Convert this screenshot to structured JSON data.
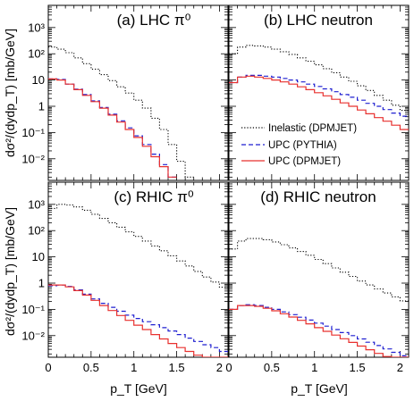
{
  "chart_data": {
    "type": "line",
    "ylabel": "dσ²/(dydp_T) [mb/GeV]",
    "xlabel": "p_T [GeV]",
    "y_scale": "log",
    "grid": false,
    "legend_placement": "right-middle of panel (b)",
    "legend": [
      {
        "series": "inelastic",
        "label": "Inelastic (DPMJET)",
        "color": "#000000",
        "style": "dotted"
      },
      {
        "series": "upc_pythia",
        "label": "UPC (PYTHIA)",
        "color": "#1f1fd0",
        "style": "dashed"
      },
      {
        "series": "upc_dpmjet",
        "label": "UPC (DPMJET)",
        "color": "#e8312f",
        "style": "solid"
      }
    ],
    "panels": [
      {
        "id": "a",
        "title": "(a) LHC π⁰",
        "xlim": [
          0,
          2.1
        ],
        "ylim": [
          0.0015,
          7000
        ],
        "x_ticks": [
          0,
          0.5,
          1,
          1.5,
          2
        ],
        "x_tick_labels": [
          "0",
          "0.5",
          "1",
          "1.5",
          "2"
        ],
        "y_ticks": [
          0.01,
          0.1,
          1,
          10,
          100,
          1000
        ],
        "y_tick_labels": [
          "10⁻²",
          "10⁻¹",
          "1",
          "10",
          "10²",
          "10³"
        ],
        "series": {
          "inelastic": {
            "x": [
              0.05,
              0.15,
              0.25,
              0.35,
              0.45,
              0.55,
              0.65,
              0.75,
              0.85,
              0.95,
              1.05,
              1.15,
              1.25,
              1.35,
              1.45,
              1.55,
              1.65
            ],
            "y": [
              180,
              150,
              110,
              70,
              42,
              26,
              16,
              9.5,
              5.5,
              3.2,
              1.7,
              0.85,
              0.35,
              0.13,
              0.035,
              0.008,
              0.002
            ]
          },
          "upc_pythia": {
            "x": [
              0.05,
              0.15,
              0.25,
              0.35,
              0.45,
              0.55,
              0.65,
              0.75,
              0.85,
              0.95,
              1.05,
              1.15,
              1.25,
              1.35,
              1.45
            ],
            "y": [
              11,
              10.5,
              7,
              4.5,
              2.8,
              1.6,
              0.9,
              0.5,
              0.28,
              0.15,
              0.075,
              0.035,
              0.015,
              0.006,
              0.002
            ]
          },
          "upc_dpmjet": {
            "x": [
              0.05,
              0.15,
              0.25,
              0.35,
              0.45,
              0.55,
              0.65,
              0.75,
              0.85,
              0.95,
              1.05,
              1.15,
              1.25,
              1.35,
              1.45
            ],
            "y": [
              11,
              10,
              7,
              4.3,
              2.6,
              1.5,
              0.85,
              0.46,
              0.25,
              0.13,
              0.065,
              0.03,
              0.012,
              0.005,
              0.002
            ]
          }
        }
      },
      {
        "id": "b",
        "title": "(b) LHC neutron",
        "xlim": [
          0,
          2.1
        ],
        "ylim": [
          0.0015,
          7000
        ],
        "x_ticks": [
          0,
          0.5,
          1,
          1.5,
          2
        ],
        "x_tick_labels": [
          "0",
          "0.5",
          "1",
          "1.5",
          "2"
        ],
        "y_ticks": [],
        "y_tick_labels": [],
        "series": {
          "inelastic": {
            "x": [
              0.05,
              0.15,
              0.25,
              0.35,
              0.45,
              0.55,
              0.65,
              0.75,
              0.85,
              0.95,
              1.05,
              1.15,
              1.25,
              1.35,
              1.45,
              1.55,
              1.65,
              1.75,
              1.85,
              1.95,
              2.05
            ],
            "y": [
              100,
              180,
              210,
              200,
              180,
              150,
              120,
              95,
              70,
              52,
              38,
              27,
              19,
              13,
              9,
              6,
              4,
              2.6,
              1.7,
              1.1,
              0.7
            ]
          },
          "upc_pythia": {
            "x": [
              0.05,
              0.15,
              0.25,
              0.35,
              0.45,
              0.55,
              0.65,
              0.75,
              0.85,
              0.95,
              1.05,
              1.15,
              1.25,
              1.35,
              1.45,
              1.55,
              1.65,
              1.75,
              1.85,
              1.95,
              2.05
            ],
            "y": [
              8,
              13,
              15,
              15,
              14,
              13,
              11.5,
              10,
              8.5,
              7,
              5.7,
              4.6,
              3.6,
              2.8,
              2.2,
              1.7,
              1.3,
              1.0,
              0.75,
              0.55,
              0.42
            ]
          },
          "upc_dpmjet": {
            "x": [
              0.05,
              0.15,
              0.25,
              0.35,
              0.45,
              0.55,
              0.65,
              0.75,
              0.85,
              0.95,
              1.05,
              1.15,
              1.25,
              1.35,
              1.45,
              1.55,
              1.65,
              1.75,
              1.85,
              1.95,
              2.05
            ],
            "y": [
              8,
              13,
              14,
              13,
              11.5,
              10,
              8.5,
              7,
              5.5,
              4.3,
              3.3,
              2.5,
              1.85,
              1.35,
              1.0,
              0.72,
              0.52,
              0.37,
              0.27,
              0.19,
              0.13
            ]
          }
        }
      },
      {
        "id": "c",
        "title": "(c) RHIC π⁰",
        "xlim": [
          0,
          2.1
        ],
        "ylim": [
          0.0015,
          7000
        ],
        "x_ticks": [
          0,
          0.5,
          1,
          1.5,
          2
        ],
        "x_tick_labels": [
          "0",
          "0.5",
          "1",
          "1.5",
          "2"
        ],
        "y_ticks": [
          0.01,
          0.1,
          1,
          10,
          100,
          1000
        ],
        "y_tick_labels": [
          "10⁻²",
          "10⁻¹",
          "1",
          "10",
          "10²",
          "10³"
        ],
        "series": {
          "inelastic": {
            "x": [
              0.05,
              0.15,
              0.25,
              0.35,
              0.45,
              0.55,
              0.65,
              0.75,
              0.85,
              0.95,
              1.05,
              1.15,
              1.25,
              1.35,
              1.45,
              1.55,
              1.65,
              1.75,
              1.85,
              1.95,
              2.05
            ],
            "y": [
              700,
              1000,
              950,
              800,
              600,
              420,
              290,
              200,
              135,
              90,
              60,
              40,
              26,
              17,
              11,
              7,
              4.5,
              2.8,
              1.7,
              1.1,
              0.7
            ]
          },
          "upc_pythia": {
            "x": [
              0.05,
              0.15,
              0.25,
              0.35,
              0.45,
              0.55,
              0.65,
              0.75,
              0.85,
              0.95,
              1.05,
              1.15,
              1.25,
              1.35,
              1.45,
              1.55,
              1.65,
              1.75,
              1.85,
              1.95,
              2.05
            ],
            "y": [
              0.8,
              0.85,
              0.75,
              0.55,
              0.38,
              0.25,
              0.17,
              0.12,
              0.085,
              0.06,
              0.045,
              0.034,
              0.026,
              0.02,
              0.015,
              0.011,
              0.008,
              0.006,
              0.0045,
              0.0035,
              0.0025
            ]
          },
          "upc_dpmjet": {
            "x": [
              0.05,
              0.15,
              0.25,
              0.35,
              0.45,
              0.55,
              0.65,
              0.75,
              0.85,
              0.95,
              1.05,
              1.15,
              1.25,
              1.35,
              1.45,
              1.55,
              1.65,
              1.75,
              1.85,
              1.95,
              2.05
            ],
            "y": [
              0.85,
              0.85,
              0.72,
              0.52,
              0.35,
              0.22,
              0.14,
              0.09,
              0.058,
              0.038,
              0.025,
              0.017,
              0.011,
              0.0075,
              0.005,
              0.0035,
              0.0025,
              0.0018,
              0.0013,
              0.001,
              0.0008
            ]
          }
        }
      },
      {
        "id": "d",
        "title": "(d) RHIC neutron",
        "xlim": [
          0,
          2.1
        ],
        "ylim": [
          0.0015,
          7000
        ],
        "x_ticks": [
          0,
          0.5,
          1,
          1.5,
          2
        ],
        "x_tick_labels": [
          "0",
          "0.5",
          "1",
          "1.5",
          "2"
        ],
        "y_ticks": [],
        "y_tick_labels": [],
        "series": {
          "inelastic": {
            "x": [
              0.05,
              0.15,
              0.25,
              0.35,
              0.45,
              0.55,
              0.65,
              0.75,
              0.85,
              0.95,
              1.05,
              1.15,
              1.25,
              1.35,
              1.45,
              1.55,
              1.65,
              1.75,
              1.85,
              1.95,
              2.05
            ],
            "y": [
              20,
              40,
              50,
              50,
              45,
              37,
              29,
              22,
              16,
              11.5,
              8,
              5.5,
              3.8,
              2.6,
              1.8,
              1.2,
              0.85,
              0.6,
              0.42,
              0.3,
              0.21
            ]
          },
          "upc_pythia": {
            "x": [
              0.05,
              0.15,
              0.25,
              0.35,
              0.45,
              0.55,
              0.65,
              0.75,
              0.85,
              0.95,
              1.05,
              1.15,
              1.25,
              1.35,
              1.45,
              1.55,
              1.65,
              1.75,
              1.85,
              1.95,
              2.05
            ],
            "y": [
              0.1,
              0.14,
              0.15,
              0.14,
              0.12,
              0.1,
              0.08,
              0.063,
              0.05,
              0.039,
              0.03,
              0.023,
              0.017,
              0.013,
              0.01,
              0.0075,
              0.0056,
              0.0042,
              0.0031,
              0.0023,
              0.0017
            ]
          },
          "upc_dpmjet": {
            "x": [
              0.05,
              0.15,
              0.25,
              0.35,
              0.45,
              0.55,
              0.65,
              0.75,
              0.85,
              0.95,
              1.05,
              1.15,
              1.25,
              1.35,
              1.45,
              1.55,
              1.65,
              1.75,
              1.85,
              1.95,
              2.05
            ],
            "y": [
              0.1,
              0.14,
              0.14,
              0.13,
              0.11,
              0.088,
              0.068,
              0.051,
              0.038,
              0.028,
              0.02,
              0.0145,
              0.0105,
              0.0076,
              0.0055,
              0.004,
              0.0029,
              0.0021,
              0.0016,
              0.0012,
              0.0009
            ]
          }
        }
      }
    ]
  }
}
